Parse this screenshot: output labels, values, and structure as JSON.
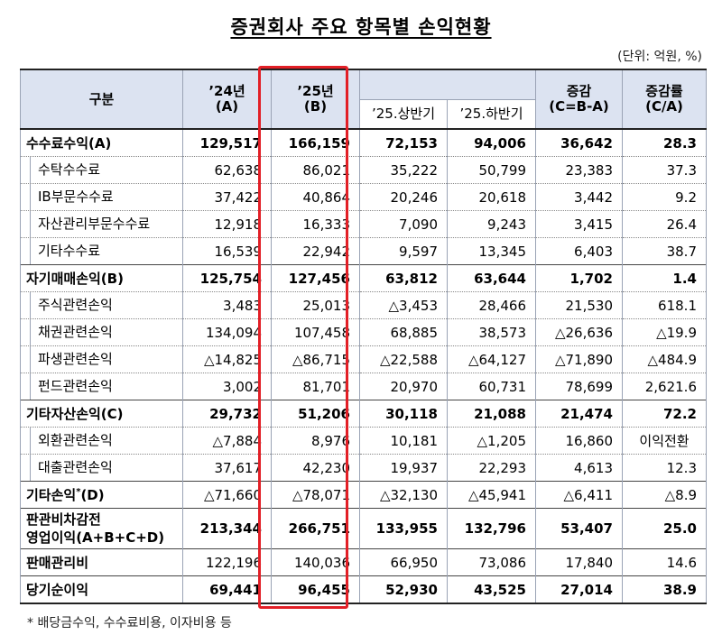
{
  "title": "증권회사 주요 항목별 손익현황",
  "unit": "(단위: 억원, %)",
  "header": {
    "category": "구분",
    "y24_line1": "’24년",
    "y24_line2": "(A)",
    "y25_line1": "’25년",
    "y25_line2": "(B)",
    "h1": "’25.상반기",
    "h2": "’25.하반기",
    "diff_line1": "증감",
    "diff_line2": "(C=B-A)",
    "rate_line1": "증감률",
    "rate_line2": "(C/A)"
  },
  "rows": [
    {
      "type": "main",
      "name": "수수료수익(A)",
      "v": [
        "129,517",
        "166,159",
        "72,153",
        "94,006",
        "36,642",
        "28.3"
      ]
    },
    {
      "type": "sub",
      "name": "수탁수수료",
      "v": [
        "62,638",
        "86,021",
        "35,222",
        "50,799",
        "23,383",
        "37.3"
      ]
    },
    {
      "type": "sub",
      "name": "IB부문수수료",
      "v": [
        "37,422",
        "40,864",
        "20,246",
        "20,618",
        "3,442",
        "9.2"
      ]
    },
    {
      "type": "sub",
      "name": "자산관리부문수수료",
      "v": [
        "12,918",
        "16,333",
        "7,090",
        "9,243",
        "3,415",
        "26.4"
      ]
    },
    {
      "type": "sub",
      "name": "기타수수료",
      "v": [
        "16,539",
        "22,942",
        "9,597",
        "13,345",
        "6,403",
        "38.7"
      ]
    },
    {
      "type": "main",
      "name": "자기매매손익(B)",
      "v": [
        "125,754",
        "127,456",
        "63,812",
        "63,644",
        "1,702",
        "1.4"
      ]
    },
    {
      "type": "sub",
      "name": "주식관련손익",
      "v": [
        "3,483",
        "25,013",
        "△3,453",
        "28,466",
        "21,530",
        "618.1"
      ]
    },
    {
      "type": "sub",
      "name": "채권관련손익",
      "v": [
        "134,094",
        "107,458",
        "68,885",
        "38,573",
        "△26,636",
        "△19.9"
      ]
    },
    {
      "type": "sub",
      "name": "파생관련손익",
      "v": [
        "△14,825",
        "△86,715",
        "△22,588",
        "△64,127",
        "△71,890",
        "△484.9"
      ]
    },
    {
      "type": "sub",
      "name": "펀드관련손익",
      "v": [
        "3,002",
        "81,701",
        "20,970",
        "60,731",
        "78,699",
        "2,621.6"
      ]
    },
    {
      "type": "main",
      "name": "기타자산손익(C)",
      "v": [
        "29,732",
        "51,206",
        "30,118",
        "21,088",
        "21,474",
        "72.2"
      ]
    },
    {
      "type": "sub",
      "name": "외환관련손익",
      "v": [
        "△7,884",
        "8,976",
        "10,181",
        "△1,205",
        "16,860",
        "이익전환"
      ]
    },
    {
      "type": "sub",
      "name": "대출관련손익",
      "v": [
        "37,617",
        "42,230",
        "19,937",
        "22,293",
        "4,613",
        "12.3"
      ]
    }
  ],
  "other_income": {
    "name": "기타손익",
    "sup": "*",
    "suffix": "(D)",
    "v": [
      "△71,660",
      "△78,071",
      "△32,130",
      "△45,941",
      "△6,411",
      "△8.9"
    ]
  },
  "operating_profit": {
    "line1": "판관비차감전",
    "line2": "영업이익(A+B+C+D)",
    "v": [
      "213,344",
      "266,751",
      "133,955",
      "132,796",
      "53,407",
      "25.0"
    ]
  },
  "sga": {
    "name": "판매관리비",
    "v": [
      "122,196",
      "140,036",
      "66,950",
      "73,086",
      "17,840",
      "14.6"
    ]
  },
  "net_income": {
    "name": "당기순이익",
    "v": [
      "69,441",
      "96,455",
      "52,930",
      "43,525",
      "27,014",
      "38.9"
    ]
  },
  "footnote": "* 배당금수익, 수수료비용, 이자비용 등",
  "colors": {
    "header_bg": "#dce3f1",
    "highlight_border": "#e21f26"
  }
}
